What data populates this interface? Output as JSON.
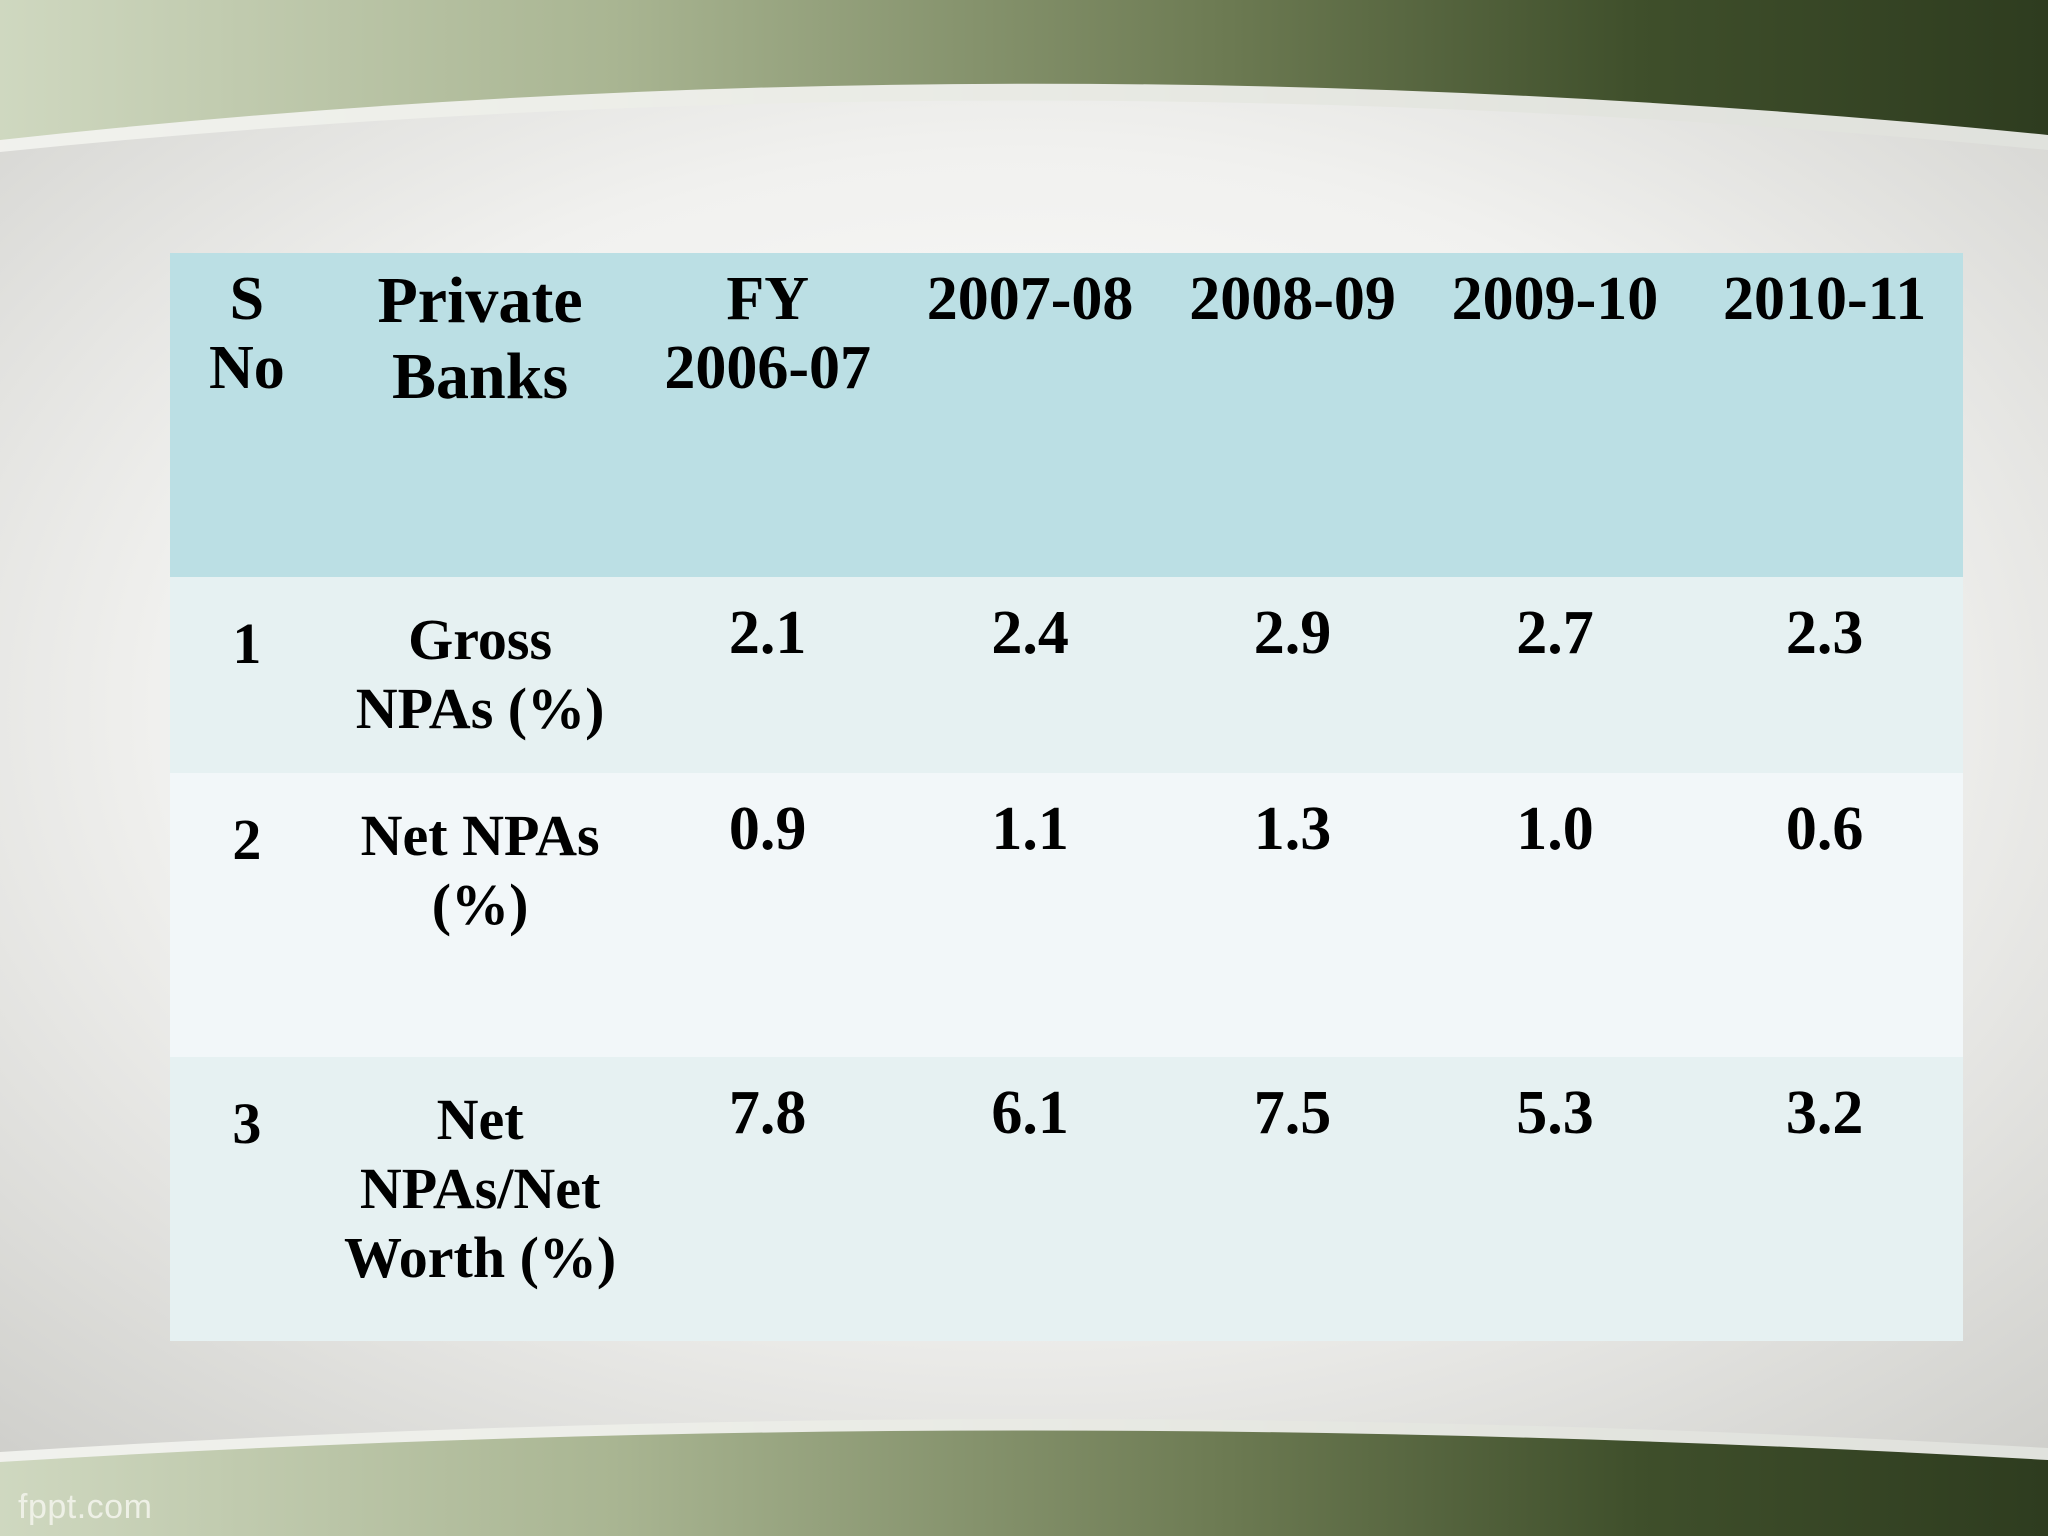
{
  "footer": {
    "watermark": "fppt.com"
  },
  "table": {
    "headers": [
      "S No",
      "Private Banks",
      "FY 2006-07",
      "2007-08",
      "2008-09",
      "2009-10",
      "2010-11"
    ],
    "header_lines": {
      "sno": [
        "S",
        "No"
      ],
      "name": [
        "Private",
        "Banks"
      ],
      "fy": [
        "FY",
        "2006-07"
      ]
    },
    "rows": [
      {
        "sno": "1",
        "name_lines": [
          "Gross",
          "NPAs (%)"
        ],
        "values": [
          "2.1",
          "2.4",
          "2.9",
          "2.7",
          "2.3"
        ]
      },
      {
        "sno": "2",
        "name_lines": [
          "Net NPAs",
          "(%)"
        ],
        "values": [
          "0.9",
          "1.1",
          "1.3",
          "1.0",
          "0.6"
        ]
      },
      {
        "sno": "3",
        "name_lines": [
          "Net",
          "NPAs/Net",
          "Worth (%)"
        ],
        "values": [
          "7.8",
          "6.1",
          "7.5",
          "5.3",
          "3.2"
        ]
      }
    ]
  }
}
